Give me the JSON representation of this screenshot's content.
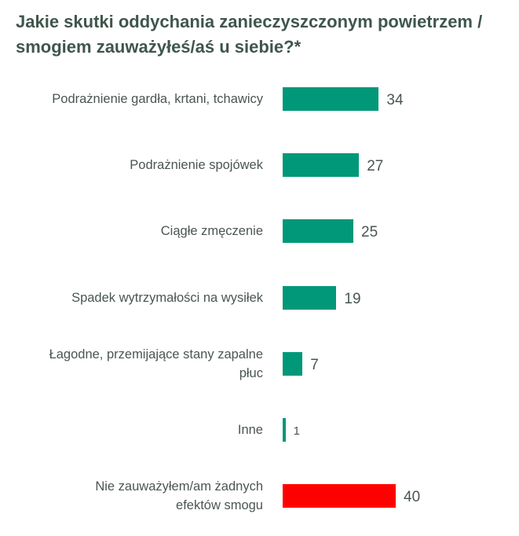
{
  "chart_data": {
    "type": "bar",
    "orientation": "horizontal",
    "title": "Jakie skutki oddychania zanieczyszczonym powietrzem / smogiem zauważyłeś/aś u siebie?*",
    "xlabel": "",
    "ylabel": "",
    "grid": false,
    "categories": [
      "Podrażnienie gardła, krtani, tchawicy",
      "Podrażnienie spojówek",
      "Ciągłe zmęczenie",
      "Spadek wytrzymałości na wysiłek",
      "Łagodne, przemijające stany zapalne płuc",
      "Inne",
      "Nie zauważyłem/am żadnych efektów smogu"
    ],
    "values": [
      34,
      27,
      25,
      19,
      7,
      1,
      40
    ],
    "colors": [
      "#009878",
      "#009878",
      "#009878",
      "#009878",
      "#009878",
      "#009878",
      "#ff0000"
    ],
    "xlim": [
      0,
      40
    ]
  }
}
